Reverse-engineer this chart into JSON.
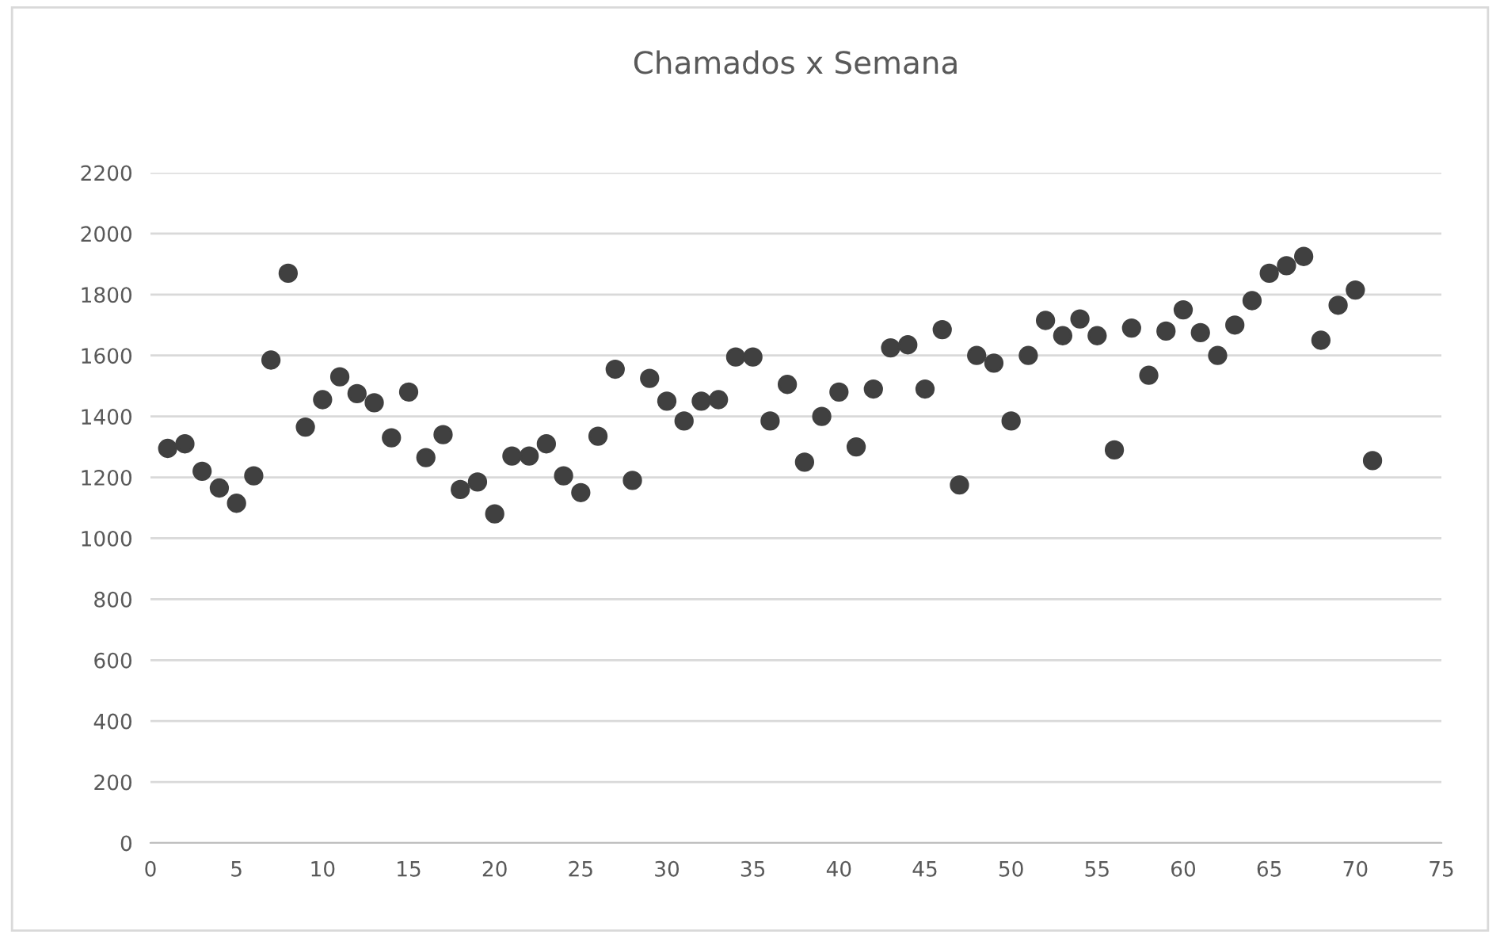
{
  "chart_data": {
    "type": "scatter",
    "title": "Chamados x Semana",
    "x": [
      1,
      2,
      3,
      4,
      5,
      6,
      7,
      8,
      9,
      10,
      11,
      12,
      13,
      14,
      15,
      16,
      17,
      18,
      19,
      20,
      21,
      22,
      23,
      24,
      25,
      26,
      27,
      28,
      29,
      30,
      31,
      32,
      33,
      34,
      35,
      36,
      37,
      38,
      39,
      40,
      41,
      42,
      43,
      44,
      45,
      46,
      47,
      48,
      49,
      50,
      51,
      52,
      53,
      54,
      55,
      56,
      57,
      58,
      59,
      60,
      61,
      62,
      63,
      64,
      65,
      66,
      67,
      68,
      69,
      70,
      71
    ],
    "series": [
      {
        "color": "#404040",
        "values": [
          1295,
          1310,
          1220,
          1165,
          1115,
          1205,
          1585,
          1870,
          1365,
          1455,
          1530,
          1475,
          1445,
          1330,
          1480,
          1265,
          1340,
          1160,
          1185,
          1080,
          1270,
          1270,
          1310,
          1205,
          1150,
          1335,
          1555,
          1190,
          1525,
          1450,
          1385,
          1450,
          1455,
          1595,
          1595,
          1385,
          1505,
          1250,
          1400,
          1480,
          1300,
          1490,
          1625,
          1635,
          1490,
          1685,
          1175,
          1600,
          1575,
          1385,
          1600,
          1715,
          1665,
          1720,
          1665,
          1290,
          1690,
          1535,
          1680,
          1750,
          1675,
          1600,
          1700,
          1780,
          1870,
          1895,
          1925,
          1650,
          1765,
          1815,
          1255
        ]
      }
    ],
    "xlim": [
      0,
      75
    ],
    "xticks": [
      0,
      5,
      10,
      15,
      20,
      25,
      30,
      35,
      40,
      45,
      50,
      55,
      60,
      65,
      70,
      75
    ],
    "ylim": [
      0,
      2200
    ],
    "yticks": [
      0,
      200,
      400,
      600,
      800,
      1000,
      1200,
      1400,
      1600,
      1800,
      2000,
      2200
    ],
    "grid": "y",
    "marker": "circle",
    "legend": false
  }
}
